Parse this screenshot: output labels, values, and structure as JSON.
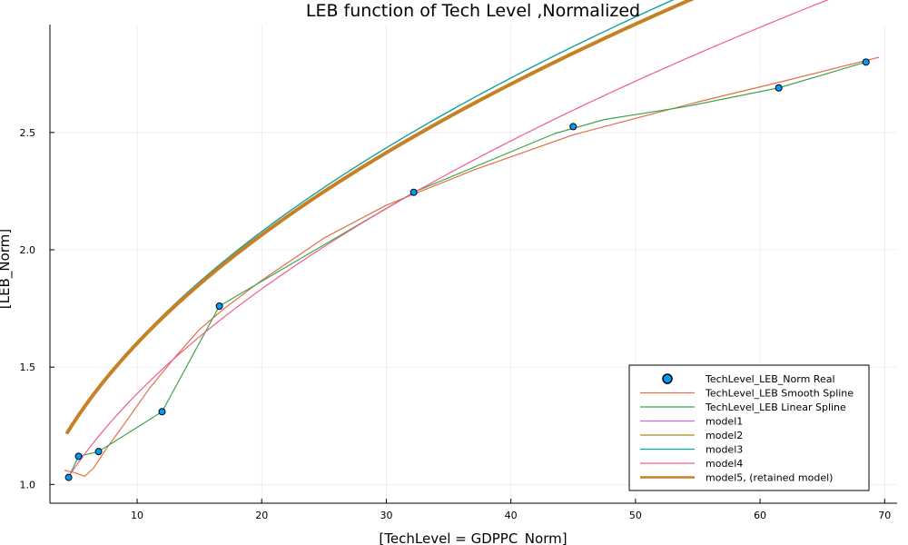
{
  "chart_data": {
    "type": "line",
    "title": "LEB function of Tech Level ,Normalized",
    "xlabel": "[TechLevel = GDPPC_Norm]",
    "ylabel": "[LEB_Norm]",
    "xlim": [
      3,
      71
    ],
    "ylim": [
      0.92,
      2.96
    ],
    "xticks": [
      10,
      20,
      30,
      40,
      50,
      60,
      70
    ],
    "yticks": [
      1.0,
      1.5,
      2.0,
      2.5
    ],
    "xtick_labels": [
      "10",
      "20",
      "30",
      "40",
      "50",
      "60",
      "70"
    ],
    "ytick_labels": [
      "1.0",
      "1.5",
      "2.0",
      "2.5"
    ],
    "grid": true,
    "legend_position": "bottom-right",
    "series": [
      {
        "name": "TechLevel_LEB_Norm Real",
        "kind": "scatter",
        "color": "#009AFA",
        "x": [
          4.5,
          5.3,
          6.9,
          12.0,
          16.6,
          32.2,
          45.0,
          61.5,
          68.5
        ],
        "y": [
          1.03,
          1.12,
          1.14,
          1.31,
          1.76,
          2.245,
          2.525,
          2.69,
          2.8
        ]
      },
      {
        "name": "TechLevel_LEB Smooth Spline",
        "kind": "line",
        "color": "#E26F46",
        "x": [
          4.2,
          5.0,
          5.8,
          6.5,
          7.5,
          9.0,
          11.0,
          13.0,
          15.0,
          17.0,
          20.0,
          25.0,
          30.0,
          37.0,
          45.0,
          55.0,
          62.0,
          69.5
        ],
        "y": [
          1.06,
          1.05,
          1.035,
          1.07,
          1.15,
          1.26,
          1.41,
          1.54,
          1.66,
          1.75,
          1.87,
          2.05,
          2.19,
          2.34,
          2.49,
          2.63,
          2.72,
          2.82
        ]
      },
      {
        "name": "TechLevel_LEB Linear Spline",
        "kind": "line",
        "color": "#3DA44D",
        "x": [
          4.5,
          5.3,
          6.9,
          12.0,
          16.6,
          32.2,
          43.5,
          47.5,
          54.0,
          61.5,
          68.5
        ],
        "y": [
          1.03,
          1.12,
          1.14,
          1.31,
          1.76,
          2.245,
          2.495,
          2.555,
          2.61,
          2.69,
          2.8
        ]
      },
      {
        "name": "model1",
        "kind": "line",
        "color": "#C271D2",
        "model": {
          "a": 0.3727,
          "b": -0.0018,
          "c": 0.447,
          "p": 0.5,
          "x0": 4.4
        }
      },
      {
        "name": "model2",
        "kind": "line",
        "color": "#AC8D18",
        "model": {
          "a": 0.3727,
          "b": -0.0018,
          "c": 0.447,
          "p": 0.5,
          "x0": 4.4
        }
      },
      {
        "name": "model3",
        "kind": "line",
        "color": "#00A9AD",
        "model": {
          "a": 0.3727,
          "b": -0.0018,
          "c": 0.447,
          "p": 0.5,
          "x0": 4.4
        }
      },
      {
        "name": "model4",
        "kind": "line",
        "color": "#ED5D92",
        "model": {
          "a": 0.3406,
          "b": 0.0,
          "c": 0.31,
          "p": 0.5,
          "x0": 4.4
        }
      },
      {
        "name": "model5, (retained model)",
        "kind": "line",
        "color": "#C68125",
        "thick": true,
        "model": {
          "a": 0.3664,
          "b": -0.0018,
          "c": 0.461,
          "p": 0.5,
          "x0": 4.4
        }
      }
    ]
  }
}
